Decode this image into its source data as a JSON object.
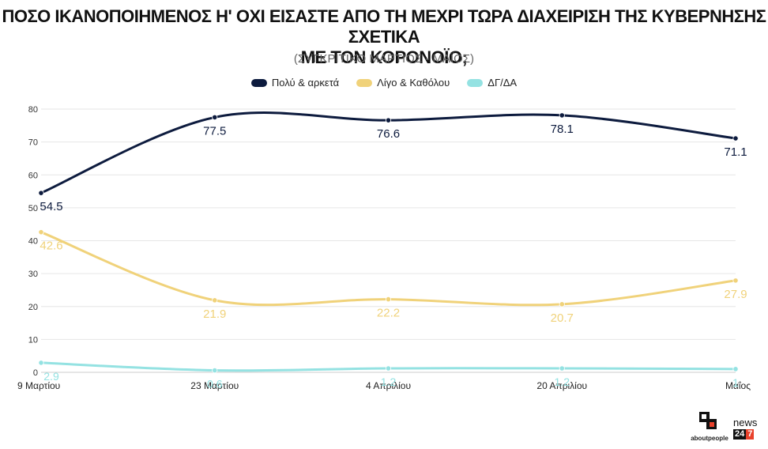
{
  "title_line1": "ΠΟΣΟ ΙΚΑΝΟΠΟΙΗΜΕΝΟΣ Η' ΟΧΙ ΕΙΣΑΣΤΕ ΑΠΟ ΤΗ ΜΕΧΡΙ ΤΩΡΑ ΔΙΑΧΕΙΡΙΣΗ ΤΗΣ ΚΥΒΕΡΝΗΣΗΣ ΣΧΕΤΙΚΑ",
  "title_line2": "ΜΕ ΤΟΝ ΚΟΡΟΝΟΪΟ;",
  "subtitle": "(ΣΥΓΚΡΙΤΙΚΟ ΜΑΡΤΙΟΣ - ΜΑΪΟΣ)",
  "logos": {
    "aboutpeople": "aboutpeople",
    "news": "news",
    "news_24": "24",
    "news_7": "7"
  },
  "chart_data": {
    "type": "line",
    "categories": [
      "9 Μαρτίου",
      "23 Μαρτίου",
      "4 Απριλίου",
      "20 Απριλίου",
      "Μαΐος"
    ],
    "series": [
      {
        "name": "Πολύ & αρκετά",
        "color": "#0d1b3e",
        "values": [
          54.5,
          77.5,
          76.6,
          78.1,
          71.1
        ]
      },
      {
        "name": "Λίγο & Καθόλου",
        "color": "#f0d27a",
        "values": [
          42.6,
          21.9,
          22.2,
          20.7,
          27.9
        ]
      },
      {
        "name": "ΔΓ/ΔΑ",
        "color": "#94e2e2",
        "values": [
          2.9,
          0.6,
          1.2,
          1.2,
          1
        ]
      }
    ],
    "data_labels": [
      [
        "54.5",
        "77.5",
        "76.6",
        "78.1",
        "71.1"
      ],
      [
        "42.6",
        "21.9",
        "22.2",
        "20.7",
        "27.9"
      ],
      [
        "2.9",
        "0.6",
        "1.2",
        "1.2",
        "1"
      ]
    ],
    "y_ticks": [
      "0",
      "10",
      "20",
      "30",
      "40",
      "50",
      "60",
      "70",
      "80"
    ],
    "ylim": [
      0,
      80
    ],
    "grid": true,
    "legend_position": "top"
  }
}
